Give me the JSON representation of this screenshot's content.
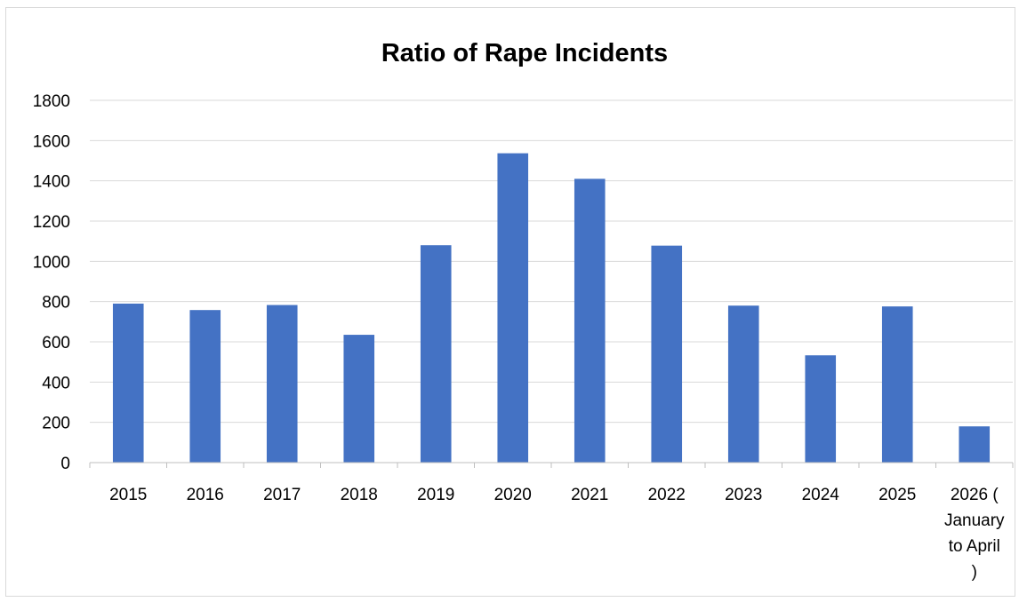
{
  "chart_data": {
    "type": "bar",
    "title": "Ratio of Rape Incidents",
    "categories": [
      "2015",
      "2016",
      "2017",
      "2018",
      "2019",
      "2020",
      "2021",
      "2022",
      "2023",
      "2024",
      "2025",
      "2026 ( January to April )"
    ],
    "category_label_lines": [
      [
        "2015"
      ],
      [
        "2016"
      ],
      [
        "2017"
      ],
      [
        "2018"
      ],
      [
        "2019"
      ],
      [
        "2020"
      ],
      [
        "2021"
      ],
      [
        "2022"
      ],
      [
        "2023"
      ],
      [
        "2024"
      ],
      [
        "2025"
      ],
      [
        "2026 (",
        "January",
        "to April",
        ")"
      ]
    ],
    "values": [
      790,
      758,
      783,
      635,
      1080,
      1537,
      1410,
      1078,
      780,
      533,
      776,
      180
    ],
    "ylim": [
      0,
      1800
    ],
    "yticks": [
      0,
      200,
      400,
      600,
      800,
      1000,
      1200,
      1400,
      1600,
      1800
    ],
    "xlabel": "",
    "ylabel": "",
    "grid": true,
    "legend": "none",
    "colors": {
      "bar": "#4472C4",
      "grid": "#d9d9d9",
      "axis": "#bfbfbf",
      "text": "#000000"
    }
  }
}
